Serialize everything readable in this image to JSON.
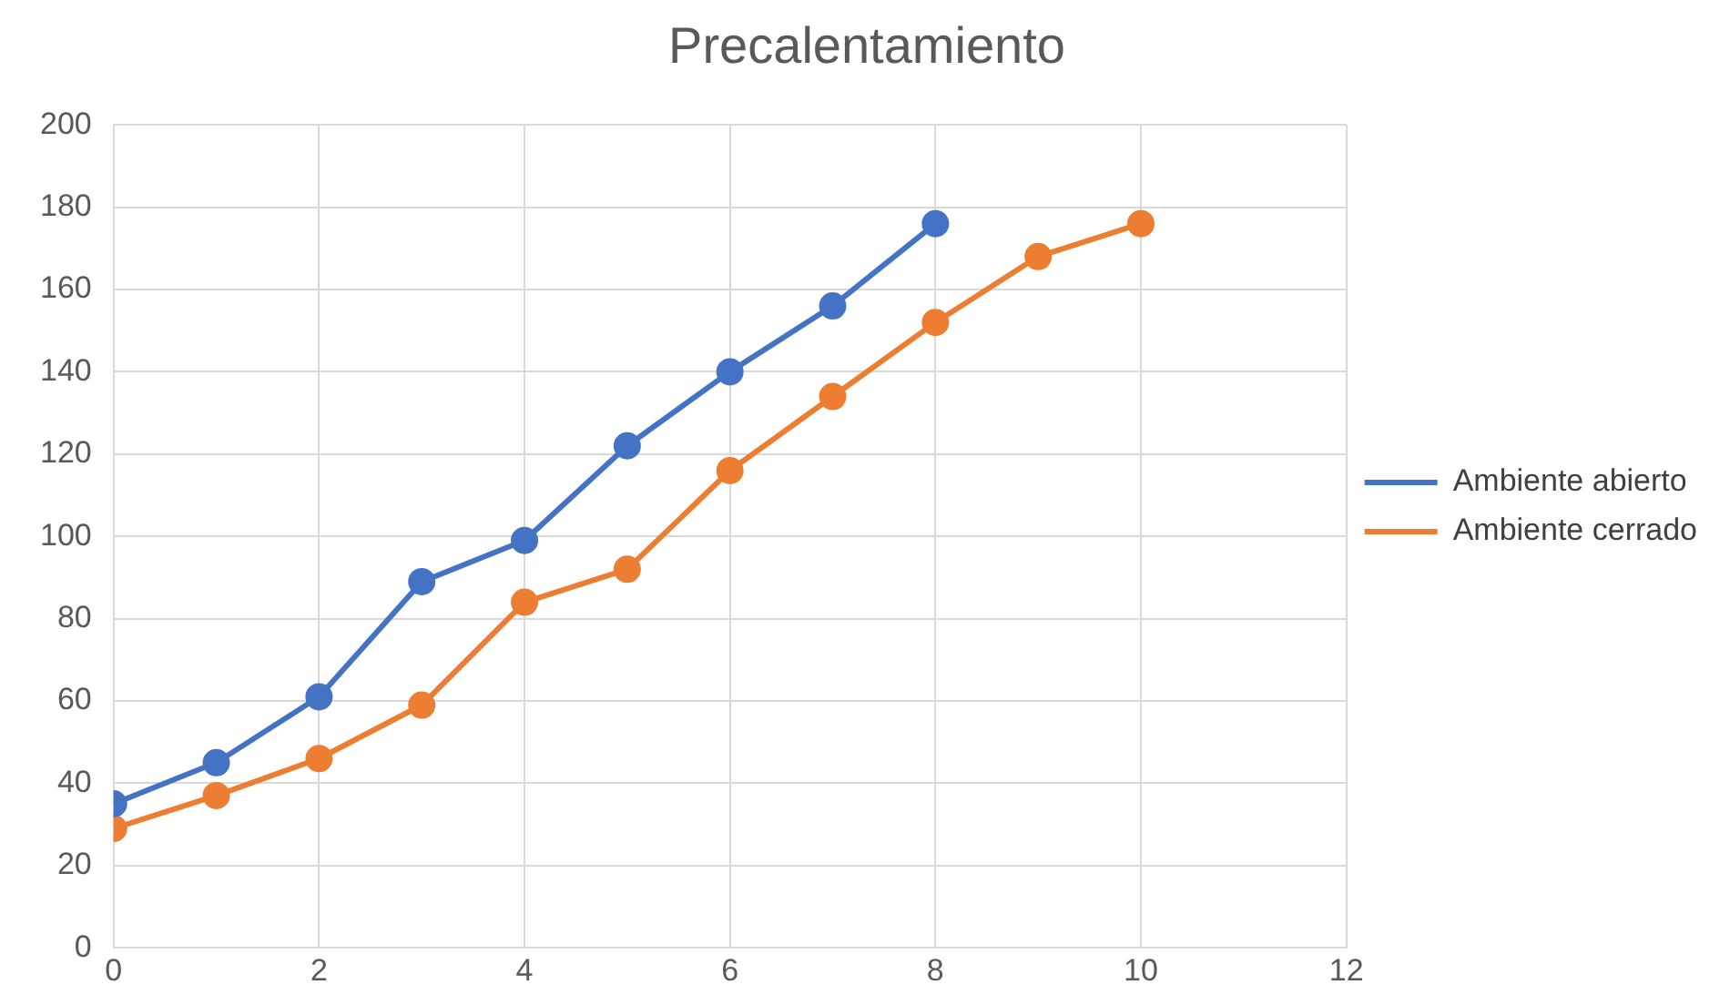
{
  "chart_data": {
    "type": "line",
    "title": "Precalentamiento",
    "x": [
      0,
      1,
      2,
      3,
      4,
      5,
      6,
      7,
      8,
      9,
      10
    ],
    "series": [
      {
        "name": "Ambiente abierto",
        "color": "#4472c4",
        "values": [
          35,
          45,
          61,
          89,
          99,
          122,
          140,
          156,
          176,
          null,
          null
        ]
      },
      {
        "name": "Ambiente cerrado",
        "color": "#ed7d31",
        "values": [
          29,
          37,
          46,
          59,
          84,
          92,
          116,
          134,
          152,
          168,
          176
        ]
      }
    ],
    "xlim": [
      0,
      12
    ],
    "xticks": [
      0,
      2,
      4,
      6,
      8,
      10,
      12
    ],
    "ylim": [
      0,
      200
    ],
    "yticks": [
      0,
      20,
      40,
      60,
      80,
      100,
      120,
      140,
      160,
      180,
      200
    ],
    "grid": true,
    "legend": "right",
    "marker": "circle",
    "line_style": "solid"
  }
}
